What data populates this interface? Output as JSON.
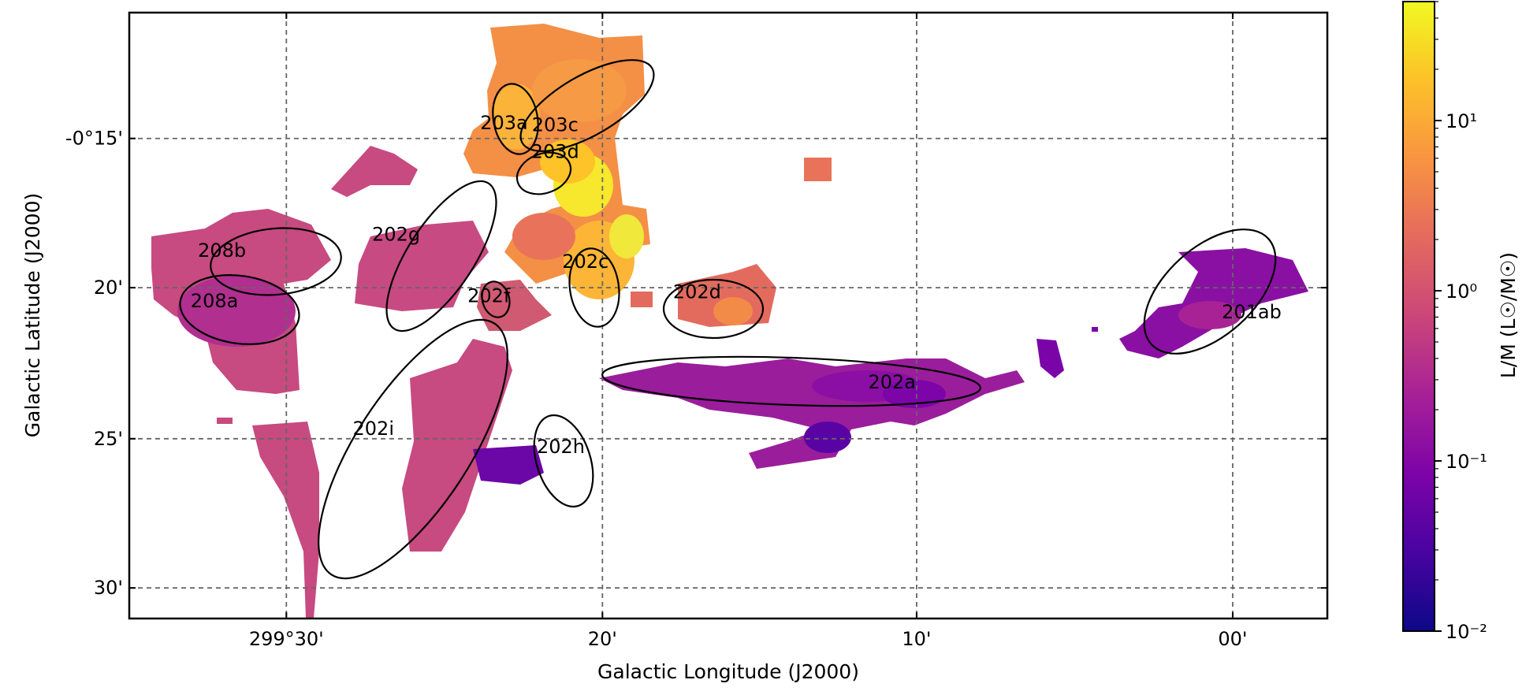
{
  "chart_data": {
    "type": "heatmap",
    "title": "",
    "xlabel": "Galactic Longitude (J2000)",
    "ylabel": "Galactic Latitude (J2000)",
    "x_ticks": [
      {
        "value": 299.5,
        "label": "299°30'"
      },
      {
        "value": 299.333,
        "label": "20'"
      },
      {
        "value": 299.167,
        "label": "10'"
      },
      {
        "value": 299.0,
        "label": "00'"
      }
    ],
    "y_ticks": [
      {
        "value": -0.25,
        "label": "-0°15'"
      },
      {
        "value": -0.333,
        "label": "20'"
      },
      {
        "value": -0.417,
        "label": "25'"
      },
      {
        "value": -0.5,
        "label": "30'"
      }
    ],
    "xlim": [
      299.583,
      298.95
    ],
    "ylim": [
      -0.517,
      -0.18
    ],
    "grid": true,
    "colorbar": {
      "label": "L/M (L☉/M☉)",
      "scale": "log",
      "range": [
        0.01,
        50
      ],
      "colormap": "plasma",
      "ticks": [
        {
          "value": 10,
          "label": "10¹"
        },
        {
          "value": 1,
          "label": "10⁰"
        },
        {
          "value": 0.1,
          "label": "10⁻¹"
        },
        {
          "value": 0.01,
          "label": "10⁻²"
        }
      ]
    },
    "regions": [
      {
        "name": "203a",
        "l": 299.385,
        "b": -0.241,
        "value": 20
      },
      {
        "name": "203c",
        "l": 299.358,
        "b": -0.242,
        "value": 8
      },
      {
        "name": "203d",
        "l": 299.358,
        "b": -0.257,
        "value": 15
      },
      {
        "name": "202g",
        "l": 299.442,
        "b": -0.303,
        "value": 1
      },
      {
        "name": "208b",
        "l": 299.534,
        "b": -0.312,
        "value": 0.8
      },
      {
        "name": "208a",
        "l": 299.538,
        "b": -0.34,
        "value": 0.6
      },
      {
        "name": "202f",
        "l": 299.393,
        "b": -0.337,
        "value": 2
      },
      {
        "name": "202c",
        "l": 299.342,
        "b": -0.318,
        "value": 12
      },
      {
        "name": "202d",
        "l": 299.283,
        "b": -0.335,
        "value": 5
      },
      {
        "name": "202a",
        "l": 299.18,
        "b": -0.385,
        "value": 0.3
      },
      {
        "name": "202i",
        "l": 299.454,
        "b": -0.411,
        "value": 0.9
      },
      {
        "name": "202h",
        "l": 299.355,
        "b": -0.421,
        "value": 0.2
      },
      {
        "name": "201ab",
        "l": 298.99,
        "b": -0.346,
        "value": 0.3
      }
    ]
  }
}
